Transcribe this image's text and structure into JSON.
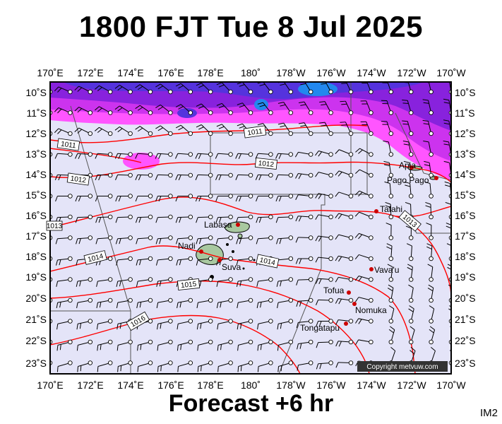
{
  "title": "1800 FJT Tue 8 Jul 2025",
  "footer": "Forecast +6 hr",
  "image_code": "IM2",
  "copyright": "Copyright metvuw.com",
  "lon_labels": [
    "170˚E",
    "172˚E",
    "174˚E",
    "176˚E",
    "178˚E",
    "180˚",
    "178˚W",
    "176˚W",
    "174˚W",
    "172˚W",
    "170˚W"
  ],
  "lat_labels": [
    "10˚S",
    "11˚S",
    "12˚S",
    "13˚S",
    "14˚S",
    "15˚S",
    "16˚S",
    "17˚S",
    "18˚S",
    "19˚S",
    "20˚S",
    "21˚S",
    "22˚S",
    "23˚S"
  ],
  "isobar_labels": [
    "1011",
    "1011",
    "1012",
    "1012",
    "1013",
    "1013",
    "1014",
    "1014",
    "1015",
    "1016"
  ],
  "places": [
    {
      "name": "Apia"
    },
    {
      "name": "Pago Pago"
    },
    {
      "name": "Tafahi"
    },
    {
      "name": "Labasa"
    },
    {
      "name": "Nadi"
    },
    {
      "name": "Suva"
    },
    {
      "name": "Vava'u"
    },
    {
      "name": "Tofua"
    },
    {
      "name": "Nomuka"
    },
    {
      "name": "Tongatapu"
    }
  ],
  "colors": {
    "sea": "#e4e4f8",
    "land": "#a8c8a0",
    "isobar": "#ff0000",
    "rain_light": "#ff44ff",
    "rain_mid": "#9922dd",
    "rain_heavy": "#2266ee"
  }
}
